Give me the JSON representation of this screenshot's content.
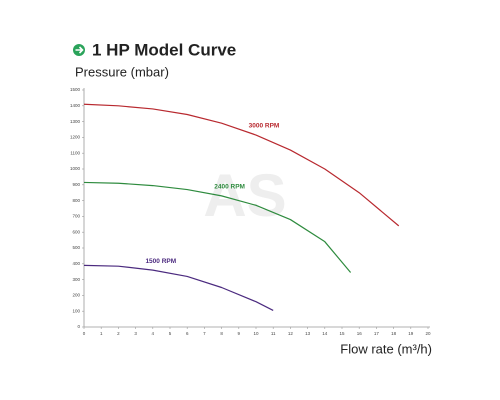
{
  "chart_data": {
    "type": "line",
    "title": "1 HP Model Curve",
    "y_label": "Pressure (mbar)",
    "x_label": "Flow rate (m³/h)",
    "watermark": "AS",
    "xlim": [
      0,
      20
    ],
    "xticks": [
      0,
      1,
      2,
      3,
      4,
      5,
      6,
      7,
      8,
      9,
      10,
      11,
      12,
      13,
      14,
      15,
      16,
      17,
      18,
      19,
      20
    ],
    "ylim": [
      0,
      1500
    ],
    "yticks": [
      0,
      100,
      200,
      300,
      400,
      500,
      600,
      700,
      800,
      900,
      1000,
      1100,
      1200,
      1300,
      1400,
      1500
    ],
    "grid": false,
    "series": [
      {
        "name": "3000 RPM",
        "color": "#b8292f",
        "x": [
          0,
          2,
          4,
          6,
          8,
          10,
          12,
          14,
          16,
          18.3
        ],
        "values": [
          1410,
          1400,
          1380,
          1345,
          1290,
          1215,
          1120,
          1000,
          850,
          640
        ]
      },
      {
        "name": "2400 RPM",
        "color": "#2e8b3e",
        "x": [
          0,
          2,
          4,
          6,
          8,
          10,
          12,
          14,
          15.5
        ],
        "values": [
          915,
          910,
          895,
          870,
          830,
          770,
          680,
          540,
          345
        ]
      },
      {
        "name": "1500 RPM",
        "color": "#4b2a7f",
        "x": [
          0,
          2,
          4,
          6,
          8,
          10,
          11
        ],
        "values": [
          390,
          385,
          360,
          320,
          250,
          160,
          105
        ]
      }
    ]
  }
}
